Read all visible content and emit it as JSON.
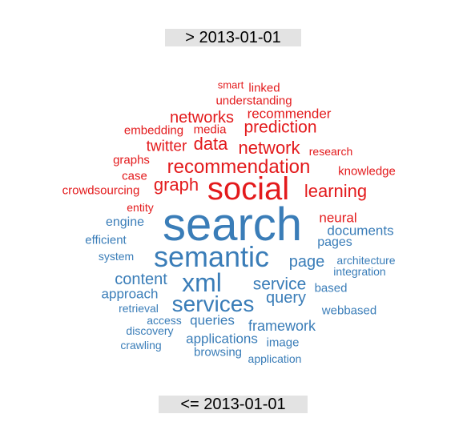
{
  "top_label": "> 2013-01-01",
  "bottom_label": "<= 2013-01-01",
  "colors": {
    "recent": "#e31a1c",
    "older": "#3a7db8"
  },
  "words": [
    {
      "text": "smart",
      "group": "recent"
    },
    {
      "text": "linked",
      "group": "recent"
    },
    {
      "text": "understanding",
      "group": "recent"
    },
    {
      "text": "recommender",
      "group": "recent"
    },
    {
      "text": "networks",
      "group": "recent"
    },
    {
      "text": "embedding",
      "group": "recent"
    },
    {
      "text": "media",
      "group": "recent"
    },
    {
      "text": "prediction",
      "group": "recent"
    },
    {
      "text": "twitter",
      "group": "recent"
    },
    {
      "text": "data",
      "group": "recent"
    },
    {
      "text": "network",
      "group": "recent"
    },
    {
      "text": "research",
      "group": "recent"
    },
    {
      "text": "graphs",
      "group": "recent"
    },
    {
      "text": "recommendation",
      "group": "recent"
    },
    {
      "text": "knowledge",
      "group": "recent"
    },
    {
      "text": "case",
      "group": "recent"
    },
    {
      "text": "graph",
      "group": "recent"
    },
    {
      "text": "social",
      "group": "recent"
    },
    {
      "text": "learning",
      "group": "recent"
    },
    {
      "text": "crowdsourcing",
      "group": "recent"
    },
    {
      "text": "entity",
      "group": "recent"
    },
    {
      "text": "neural",
      "group": "recent"
    },
    {
      "text": "search",
      "group": "older"
    },
    {
      "text": "engine",
      "group": "older"
    },
    {
      "text": "documents",
      "group": "older"
    },
    {
      "text": "efficient",
      "group": "older"
    },
    {
      "text": "pages",
      "group": "older"
    },
    {
      "text": "system",
      "group": "older"
    },
    {
      "text": "semantic",
      "group": "older"
    },
    {
      "text": "page",
      "group": "older"
    },
    {
      "text": "architecture",
      "group": "older"
    },
    {
      "text": "integration",
      "group": "older"
    },
    {
      "text": "content",
      "group": "older"
    },
    {
      "text": "xml",
      "group": "older"
    },
    {
      "text": "service",
      "group": "older"
    },
    {
      "text": "based",
      "group": "older"
    },
    {
      "text": "approach",
      "group": "older"
    },
    {
      "text": "query",
      "group": "older"
    },
    {
      "text": "services",
      "group": "older"
    },
    {
      "text": "retrieval",
      "group": "older"
    },
    {
      "text": "webbased",
      "group": "older"
    },
    {
      "text": "access",
      "group": "older"
    },
    {
      "text": "queries",
      "group": "older"
    },
    {
      "text": "framework",
      "group": "older"
    },
    {
      "text": "discovery",
      "group": "older"
    },
    {
      "text": "applications",
      "group": "older"
    },
    {
      "text": "image",
      "group": "older"
    },
    {
      "text": "crawling",
      "group": "older"
    },
    {
      "text": "browsing",
      "group": "older"
    },
    {
      "text": "application",
      "group": "older"
    }
  ]
}
